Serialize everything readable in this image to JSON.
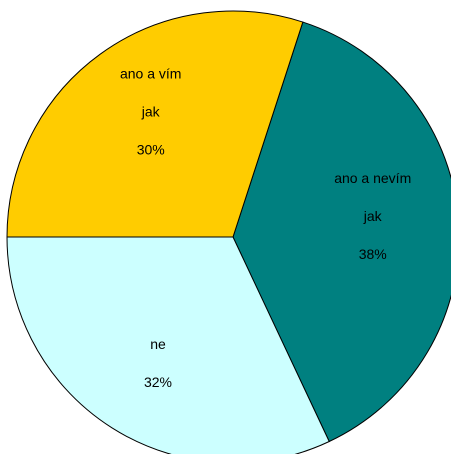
{
  "chart_data": {
    "type": "pie",
    "categories": [
      "ano a nevím jak",
      "ne",
      "ano a vím jak"
    ],
    "values": [
      38,
      32,
      30
    ],
    "value_labels": [
      "38%",
      "32%",
      "30%"
    ],
    "colors": [
      "#008080",
      "#ccffff",
      "#ffcc00"
    ]
  }
}
